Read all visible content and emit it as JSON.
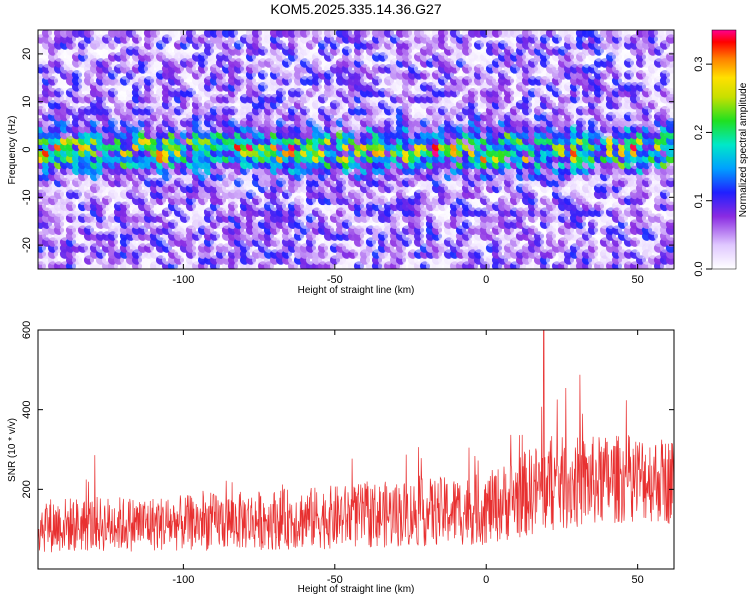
{
  "title": "KOM5.2025.335.14.36.G27",
  "chart_data": [
    {
      "type": "heatmap",
      "title": "KOM5.2025.335.14.36.G27",
      "xlabel": "Height of straight line (km)",
      "ylabel": "Frequency (Hz)",
      "xlim": [
        -148,
        62
      ],
      "ylim": [
        -25,
        25
      ],
      "x_ticks": [
        -100,
        -50,
        0,
        50
      ],
      "x_tick_labels": [
        "-100",
        "-50",
        "0",
        "50"
      ],
      "y_ticks": [
        -20,
        -10,
        0,
        10,
        20
      ],
      "y_tick_labels": [
        "-20",
        "-10",
        "0",
        "10",
        "20"
      ],
      "colorbar": {
        "label": "Normalized spectral amplitude",
        "range": [
          0.0,
          0.35
        ],
        "ticks": [
          "0.0",
          "0.1",
          "0.2",
          "0.3"
        ]
      },
      "signal_band": {
        "center_hz": 0,
        "halfwidth_hz": 5,
        "peak_amplitude": 0.35
      },
      "background_amplitude": [
        0.0,
        0.12
      ]
    },
    {
      "type": "line",
      "xlabel": "Height of straight line (km)",
      "ylabel": "SNR (10 * v/v)",
      "xlim": [
        -148,
        62
      ],
      "ylim": [
        0,
        600
      ],
      "x_ticks": [
        -100,
        -50,
        0,
        50
      ],
      "x_tick_labels": [
        "-100",
        "-50",
        "0",
        "50"
      ],
      "y_ticks": [
        200,
        400,
        600
      ],
      "y_tick_labels": [
        "200",
        "400",
        "600"
      ],
      "color": "#e83030",
      "trend": {
        "x": [
          -148,
          -100,
          -50,
          0,
          20,
          50,
          62
        ],
        "mean": [
          110,
          115,
          130,
          150,
          210,
          230,
          220
        ],
        "spread": [
          70,
          70,
          80,
          90,
          120,
          110,
          110
        ],
        "peak": {
          "x": 19,
          "y": 600
        }
      }
    }
  ]
}
